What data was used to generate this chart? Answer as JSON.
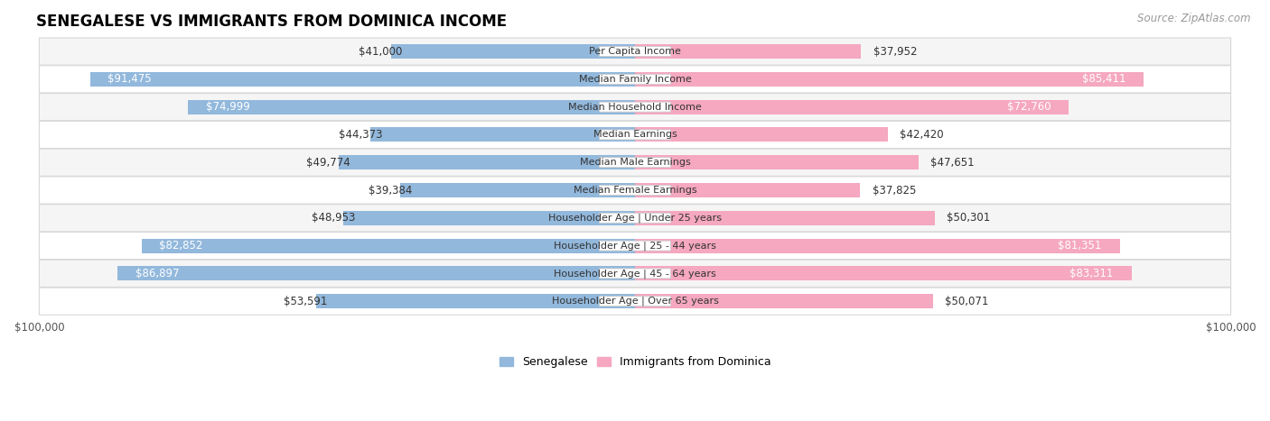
{
  "title": "SENEGALESE VS IMMIGRANTS FROM DOMINICA INCOME",
  "source": "Source: ZipAtlas.com",
  "categories": [
    "Per Capita Income",
    "Median Family Income",
    "Median Household Income",
    "Median Earnings",
    "Median Male Earnings",
    "Median Female Earnings",
    "Householder Age | Under 25 years",
    "Householder Age | 25 - 44 years",
    "Householder Age | 45 - 64 years",
    "Householder Age | Over 65 years"
  ],
  "senegalese": [
    41000,
    91475,
    74999,
    44373,
    49774,
    39384,
    48953,
    82852,
    86897,
    53591
  ],
  "dominica": [
    37952,
    85411,
    72760,
    42420,
    47651,
    37825,
    50301,
    81351,
    83311,
    50071
  ],
  "max_val": 100000,
  "blue_color": "#92b8dc",
  "pink_color": "#f5a8c0",
  "bg_row_light": "#f5f5f5",
  "bg_row_white": "#ffffff",
  "row_border_color": "#d8d8d8",
  "title_fontsize": 12,
  "source_fontsize": 8.5,
  "bar_label_fontsize": 8.5,
  "category_fontsize": 8,
  "axis_label_fontsize": 8.5,
  "legend_fontsize": 9,
  "inside_label_threshold": 60000
}
